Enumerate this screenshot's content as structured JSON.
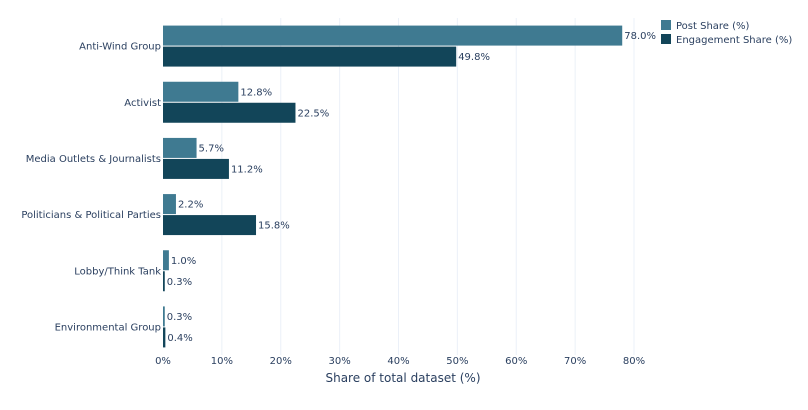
{
  "chart_data": {
    "type": "bar",
    "orientation": "horizontal",
    "categories": [
      "Anti-Wind Group",
      "Activist",
      "Media Outlets & Journalists",
      "Politicians & Political Parties",
      "Lobby/Think Tank",
      "Environmental Group"
    ],
    "series": [
      {
        "name": "Post Share (%)",
        "color": "#3f7a91",
        "values": [
          78.0,
          12.8,
          5.7,
          2.2,
          1.0,
          0.3
        ]
      },
      {
        "name": "Engagement Share (%)",
        "color": "#124559",
        "values": [
          49.8,
          22.5,
          11.2,
          15.8,
          0.3,
          0.4
        ]
      }
    ],
    "data_labels": [
      [
        "78.0%",
        "12.8%",
        "5.7%",
        "2.2%",
        "1.0%",
        "0.3%"
      ],
      [
        "49.8%",
        "22.5%",
        "11.2%",
        "15.8%",
        "0.3%",
        "0.4%"
      ]
    ],
    "xlabel": "Share of total dataset (%)",
    "ylabel": "",
    "title": "",
    "xlim": [
      0,
      80
    ],
    "xticks": [
      0,
      10,
      20,
      30,
      40,
      50,
      60,
      70,
      80
    ],
    "xtick_labels": [
      "0%",
      "10%",
      "20%",
      "30%",
      "40%",
      "50%",
      "60%",
      "70%",
      "80%"
    ],
    "grid": true,
    "legend_position": "top-right"
  }
}
